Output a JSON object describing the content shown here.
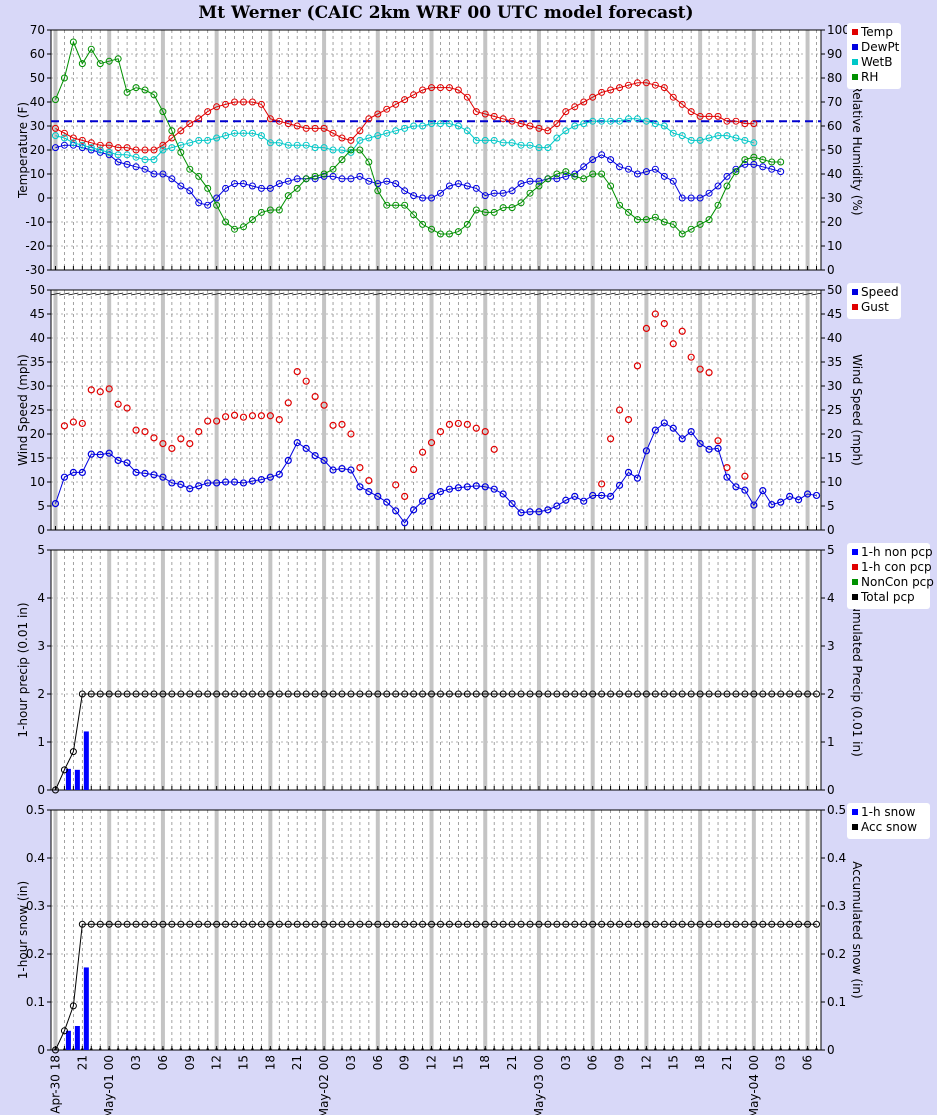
{
  "title": "Mt Werner (CAIC 2km WRF 00 UTC model forecast)",
  "x_tick_labels": [
    "Apr-30 18",
    "21",
    "May-01 00",
    "03",
    "06",
    "09",
    "12",
    "15",
    "18",
    "21",
    "May-02 00",
    "03",
    "06",
    "09",
    "12",
    "15",
    "18",
    "21",
    "May-03 00",
    "03",
    "06",
    "09",
    "12",
    "15",
    "18",
    "21",
    "May-04 00",
    "03",
    "06"
  ],
  "colors": {
    "background": "#d8d8f8",
    "temp": "#e00000",
    "dewpt": "#0000e0",
    "wetb": "#00c8c8",
    "rh": "#009000",
    "speed": "#0000e0",
    "gust": "#e00000",
    "non_pcp": "#0000ff",
    "con_pcp": "#e00000",
    "noncon_pcp": "#009000",
    "total_pcp": "#000000",
    "freezing_line": "#0000d0"
  },
  "chart_data": [
    {
      "type": "line",
      "ylabel": "Temperature (F)",
      "y2label": "Relative Humidity (%)",
      "ylim": [
        -30,
        70
      ],
      "y2lim": [
        0,
        100
      ],
      "y_ticks": [
        "-30",
        "-20",
        "-10",
        "0",
        "10",
        "20",
        "30",
        "40",
        "50",
        "60",
        "70"
      ],
      "y2_ticks": [
        "0",
        "10",
        "20",
        "30",
        "40",
        "50",
        "60",
        "70",
        "80",
        "90",
        "100"
      ],
      "reference_line": 32,
      "legend": [
        "Temp",
        "DewPt",
        "WetB",
        "RH"
      ],
      "series": [
        {
          "name": "Temp",
          "axis": "left",
          "values": [
            29,
            27,
            25,
            24,
            23,
            22,
            22,
            21,
            21,
            20,
            20,
            20,
            22,
            25,
            28,
            31,
            33,
            36,
            38,
            39,
            40,
            40,
            40,
            39,
            33,
            32,
            31,
            30,
            29,
            29,
            29,
            27,
            25,
            24,
            28,
            33,
            35,
            37,
            39,
            41,
            43,
            45,
            46,
            46,
            46,
            45,
            42,
            36,
            35,
            34,
            33,
            32,
            31,
            30,
            29,
            28,
            31,
            36,
            38,
            40,
            42,
            44,
            45,
            46,
            47,
            48,
            48,
            47,
            46,
            42,
            39,
            36,
            34,
            34,
            34,
            32,
            32,
            31,
            31
          ]
        },
        {
          "name": "DewPt",
          "axis": "left",
          "values": [
            21,
            22,
            22,
            21,
            20,
            19,
            18,
            15,
            14,
            13,
            12,
            10,
            10,
            8,
            5,
            3,
            -2,
            -3,
            0,
            4,
            6,
            6,
            5,
            4,
            4,
            6,
            7,
            8,
            8,
            8,
            9,
            9,
            8,
            8,
            9,
            7,
            6,
            7,
            6,
            3,
            1,
            0,
            0,
            2,
            5,
            6,
            5,
            4,
            1,
            2,
            2,
            3,
            6,
            7,
            7,
            8,
            8,
            9,
            10,
            13,
            16,
            18,
            16,
            13,
            12,
            10,
            11,
            12,
            9,
            7,
            0,
            0,
            0,
            2,
            5,
            9,
            12,
            14,
            14,
            13,
            12,
            11
          ]
        },
        {
          "name": "WetB",
          "axis": "left",
          "values": [
            26,
            25,
            23,
            22,
            21,
            20,
            19,
            18,
            18,
            17,
            16,
            16,
            20,
            21,
            22,
            23,
            24,
            24,
            25,
            26,
            27,
            27,
            27,
            26,
            23,
            23,
            22,
            22,
            22,
            21,
            21,
            20,
            20,
            19,
            24,
            25,
            26,
            27,
            28,
            29,
            30,
            30,
            31,
            31,
            31,
            30,
            28,
            24,
            24,
            24,
            23,
            23,
            22,
            22,
            21,
            21,
            25,
            28,
            30,
            31,
            32,
            32,
            32,
            32,
            33,
            33,
            32,
            31,
            30,
            27,
            26,
            24,
            24,
            25,
            26,
            26,
            25,
            24,
            23
          ]
        },
        {
          "name": "RH",
          "axis": "right",
          "values": [
            71,
            80,
            95,
            86,
            92,
            86,
            87,
            88,
            74,
            76,
            75,
            73,
            66,
            58,
            49,
            42,
            39,
            34,
            27,
            20,
            17,
            18,
            21,
            24,
            25,
            25,
            31,
            34,
            38,
            39,
            40,
            42,
            46,
            50,
            50,
            45,
            33,
            27,
            27,
            27,
            23,
            19,
            17,
            15,
            15,
            16,
            19,
            25,
            24,
            24,
            26,
            26,
            28,
            32,
            35,
            38,
            40,
            41,
            39,
            38,
            40,
            40,
            35,
            27,
            24,
            21,
            21,
            22,
            20,
            19,
            15,
            17,
            19,
            21,
            27,
            35,
            41,
            46,
            47,
            46,
            45,
            45
          ]
        }
      ]
    },
    {
      "type": "scatter",
      "ylabel": "Wind Speed (mph)",
      "y2label": "Wind Speed (mph)",
      "ylim": [
        0,
        50
      ],
      "y_ticks": [
        "0",
        "5",
        "10",
        "15",
        "20",
        "25",
        "30",
        "35",
        "40",
        "45",
        "50"
      ],
      "legend": [
        "Speed",
        "Gust"
      ],
      "series": [
        {
          "name": "Speed",
          "values": [
            5.5,
            11,
            12,
            12,
            15.8,
            15.7,
            16,
            14.5,
            14,
            12,
            11.8,
            11.5,
            11,
            9.8,
            9.5,
            8.6,
            9.2,
            9.8,
            9.8,
            10,
            10,
            9.8,
            10.2,
            10.5,
            11,
            11.6,
            14.5,
            18.2,
            17,
            15.5,
            14.5,
            12.5,
            12.8,
            12.5,
            9,
            8,
            7,
            5.8,
            4,
            1.5,
            4.2,
            6,
            7,
            8,
            8.5,
            8.8,
            9,
            9.2,
            9,
            8.5,
            7.5,
            5.5,
            3.6,
            3.8,
            3.8,
            4.2,
            5,
            6.2,
            7,
            6,
            7.2,
            7.2,
            7,
            9.3,
            12,
            10.8,
            16.5,
            20.8,
            22.3,
            21.2,
            19,
            20.5,
            18,
            16.8,
            17,
            11,
            9,
            8.3,
            5.2,
            8.2,
            5.3,
            5.8,
            7,
            6.3,
            7.5,
            7.2
          ]
        },
        {
          "name": "Gust",
          "values": [
            null,
            21.7,
            22.5,
            22.2,
            29.2,
            28.8,
            29.4,
            26.2,
            25.4,
            20.8,
            20.5,
            19.2,
            18,
            17,
            19,
            18,
            20.5,
            22.7,
            22.7,
            23.6,
            23.9,
            23.5,
            23.8,
            23.8,
            23.8,
            23,
            26.5,
            33,
            31,
            27.8,
            26,
            21.8,
            22,
            20,
            13,
            10.3,
            null,
            null,
            9.4,
            7,
            12.6,
            16.2,
            18.2,
            20.5,
            22,
            22.2,
            22,
            21.2,
            20.5,
            16.8,
            null,
            null,
            null,
            null,
            null,
            null,
            null,
            null,
            null,
            null,
            null,
            9.6,
            19,
            25,
            23,
            34.2,
            42,
            45,
            43,
            38.8,
            41.4,
            36,
            33.5,
            32.8,
            18.6,
            13,
            null,
            11.2,
            null,
            null,
            null,
            null,
            null,
            null,
            null,
            null
          ]
        }
      ]
    },
    {
      "type": "bar",
      "ylabel": "1-hour precip (0.01 in)",
      "y2label": "Accumulated Precip (0.01 in)",
      "ylim": [
        0,
        5
      ],
      "y_ticks": [
        "0",
        "1",
        "2",
        "3",
        "4",
        "5"
      ],
      "legend": [
        "1-h non pcp",
        "1-h con pcp",
        "NonCon pcp",
        "Total pcp"
      ],
      "series": [
        {
          "name": "1-h non pcp",
          "values": [
            0,
            0.44,
            0.42,
            1.22
          ]
        },
        {
          "name": "Total pcp",
          "values": [
            0,
            0.42,
            0.8,
            2
          ]
        }
      ]
    },
    {
      "type": "bar",
      "ylabel": "1-hour snow (in)",
      "y2label": "Accumulated snow (in)",
      "ylim": [
        0,
        0.5
      ],
      "y_ticks": [
        "0",
        "0.1",
        "0.2",
        "0.3",
        "0.4",
        "0.5"
      ],
      "legend": [
        "1-h snow",
        "Acc snow"
      ],
      "series": [
        {
          "name": "1-h snow",
          "values": [
            0,
            0.04,
            0.05,
            0.172
          ]
        },
        {
          "name": "Acc snow",
          "values": [
            0,
            0.04,
            0.092,
            0.262
          ]
        }
      ]
    }
  ]
}
